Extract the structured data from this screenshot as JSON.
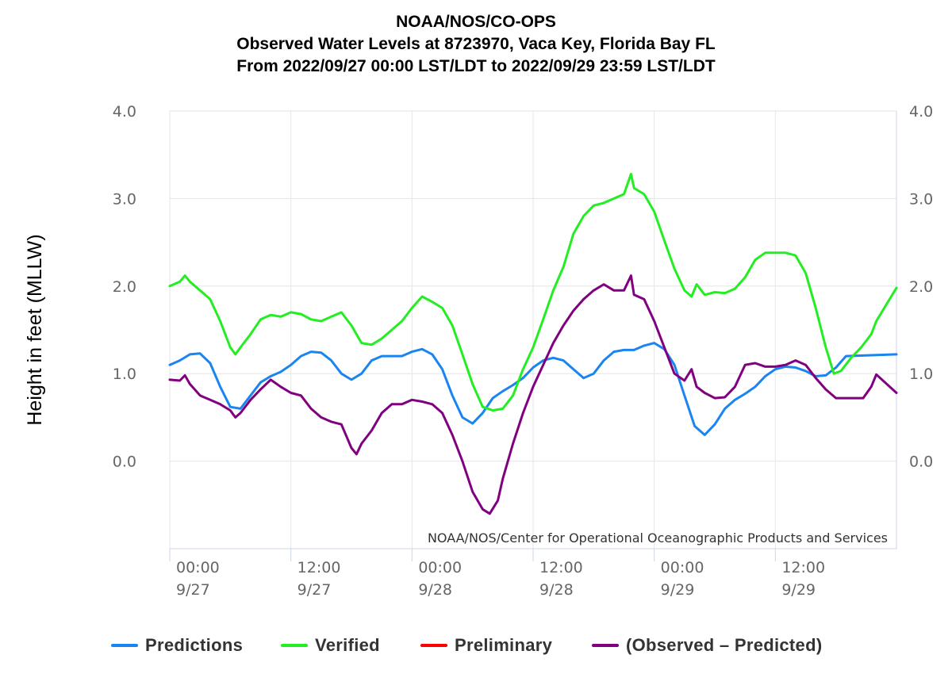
{
  "header": {
    "line1": "NOAA/NOS/CO-OPS",
    "line2": "Observed Water Levels at 8723970, Vaca Key, Florida Bay FL",
    "line3": "From 2022/09/27 00:00 LST/LDT to 2022/09/29 23:59 LST/LDT"
  },
  "colors": {
    "predictions": "#1a85f0",
    "verified": "#22ee22",
    "preliminary": "#ff0000",
    "observed_minus_predicted": "#800080"
  },
  "chart_data": {
    "type": "line",
    "title": "NOAA/NOS/CO-OPS",
    "ylabel": "Height in feet (MLLW)",
    "ylim": [
      -1.0,
      4.0
    ],
    "yticks": [
      0.0,
      1.0,
      2.0,
      3.0,
      4.0
    ],
    "ytick_labels": [
      "0.0",
      "1.0",
      "2.0",
      "3.0",
      "4.0"
    ],
    "xlim": [
      0,
      72
    ],
    "xticks": [
      0,
      12,
      24,
      36,
      48,
      60
    ],
    "xtick_labels": [
      [
        "00:00",
        "9/27"
      ],
      [
        "12:00",
        "9/27"
      ],
      [
        "00:00",
        "9/28"
      ],
      [
        "12:00",
        "9/28"
      ],
      [
        "00:00",
        "9/29"
      ],
      [
        "12:00",
        "9/29"
      ]
    ],
    "grid": true,
    "credit": "NOAA/NOS/Center for Operational Oceanographic Products and Services",
    "legend_position": "bottom",
    "series": [
      {
        "name": "Predictions",
        "color_key": "predictions",
        "points": [
          [
            0,
            1.1
          ],
          [
            1,
            1.15
          ],
          [
            2,
            1.22
          ],
          [
            3,
            1.23
          ],
          [
            4,
            1.12
          ],
          [
            5,
            0.85
          ],
          [
            6,
            0.62
          ],
          [
            7,
            0.6
          ],
          [
            8,
            0.75
          ],
          [
            9,
            0.9
          ],
          [
            10,
            0.97
          ],
          [
            11,
            1.02
          ],
          [
            12,
            1.1
          ],
          [
            13,
            1.2
          ],
          [
            14,
            1.25
          ],
          [
            15,
            1.24
          ],
          [
            16,
            1.15
          ],
          [
            17,
            1.0
          ],
          [
            18,
            0.93
          ],
          [
            19,
            1.0
          ],
          [
            20,
            1.15
          ],
          [
            21,
            1.2
          ],
          [
            22,
            1.2
          ],
          [
            23,
            1.2
          ],
          [
            24,
            1.25
          ],
          [
            25,
            1.28
          ],
          [
            26,
            1.22
          ],
          [
            27,
            1.05
          ],
          [
            28,
            0.75
          ],
          [
            29,
            0.5
          ],
          [
            30,
            0.43
          ],
          [
            31,
            0.55
          ],
          [
            32,
            0.72
          ],
          [
            33,
            0.8
          ],
          [
            34,
            0.87
          ],
          [
            35,
            0.95
          ],
          [
            36,
            1.07
          ],
          [
            37,
            1.15
          ],
          [
            38,
            1.18
          ],
          [
            39,
            1.15
          ],
          [
            40,
            1.05
          ],
          [
            41,
            0.95
          ],
          [
            42,
            1.0
          ],
          [
            43,
            1.15
          ],
          [
            44,
            1.25
          ],
          [
            45,
            1.27
          ],
          [
            46,
            1.27
          ],
          [
            47,
            1.32
          ],
          [
            48,
            1.35
          ],
          [
            49,
            1.28
          ],
          [
            50,
            1.1
          ],
          [
            51,
            0.75
          ],
          [
            52,
            0.4
          ],
          [
            53,
            0.3
          ],
          [
            54,
            0.42
          ],
          [
            55,
            0.6
          ],
          [
            56,
            0.7
          ],
          [
            57,
            0.77
          ],
          [
            58,
            0.85
          ],
          [
            59,
            0.97
          ],
          [
            60,
            1.05
          ],
          [
            61,
            1.08
          ],
          [
            62,
            1.07
          ],
          [
            63,
            1.03
          ],
          [
            64,
            0.97
          ],
          [
            65,
            0.98
          ],
          [
            66,
            1.07
          ],
          [
            67,
            1.2
          ],
          [
            72,
            1.22
          ]
        ]
      },
      {
        "name": "Verified",
        "color_key": "verified",
        "points": [
          [
            0,
            2.0
          ],
          [
            1,
            2.05
          ],
          [
            1.5,
            2.12
          ],
          [
            2,
            2.05
          ],
          [
            3,
            1.95
          ],
          [
            4,
            1.85
          ],
          [
            5,
            1.6
          ],
          [
            6,
            1.3
          ],
          [
            6.5,
            1.22
          ],
          [
            7,
            1.3
          ],
          [
            8,
            1.45
          ],
          [
            9,
            1.62
          ],
          [
            10,
            1.67
          ],
          [
            11,
            1.65
          ],
          [
            12,
            1.7
          ],
          [
            13,
            1.68
          ],
          [
            14,
            1.62
          ],
          [
            15,
            1.6
          ],
          [
            16,
            1.65
          ],
          [
            17,
            1.7
          ],
          [
            18,
            1.55
          ],
          [
            19,
            1.35
          ],
          [
            20,
            1.33
          ],
          [
            21,
            1.4
          ],
          [
            22,
            1.5
          ],
          [
            23,
            1.6
          ],
          [
            24,
            1.75
          ],
          [
            25,
            1.88
          ],
          [
            26,
            1.82
          ],
          [
            27,
            1.75
          ],
          [
            28,
            1.55
          ],
          [
            29,
            1.22
          ],
          [
            30,
            0.88
          ],
          [
            31,
            0.62
          ],
          [
            32,
            0.58
          ],
          [
            33,
            0.6
          ],
          [
            34,
            0.75
          ],
          [
            35,
            1.05
          ],
          [
            36,
            1.3
          ],
          [
            37,
            1.62
          ],
          [
            38,
            1.95
          ],
          [
            39,
            2.22
          ],
          [
            40,
            2.6
          ],
          [
            41,
            2.8
          ],
          [
            42,
            2.92
          ],
          [
            43,
            2.95
          ],
          [
            44,
            3.0
          ],
          [
            45,
            3.05
          ],
          [
            45.7,
            3.28
          ],
          [
            46,
            3.12
          ],
          [
            47,
            3.05
          ],
          [
            48,
            2.85
          ],
          [
            49,
            2.52
          ],
          [
            50,
            2.2
          ],
          [
            51,
            1.95
          ],
          [
            51.7,
            1.88
          ],
          [
            52.2,
            2.02
          ],
          [
            53,
            1.9
          ],
          [
            54,
            1.93
          ],
          [
            55,
            1.92
          ],
          [
            56,
            1.97
          ],
          [
            57,
            2.1
          ],
          [
            58,
            2.3
          ],
          [
            59,
            2.38
          ],
          [
            60,
            2.38
          ],
          [
            61,
            2.38
          ],
          [
            62,
            2.35
          ],
          [
            63,
            2.15
          ],
          [
            64,
            1.75
          ],
          [
            65,
            1.3
          ],
          [
            65.8,
            1.0
          ],
          [
            66.5,
            1.03
          ],
          [
            67.5,
            1.18
          ],
          [
            68.5,
            1.3
          ],
          [
            69.5,
            1.45
          ],
          [
            70,
            1.6
          ],
          [
            72,
            1.98
          ]
        ]
      },
      {
        "name": "Preliminary",
        "color_key": "preliminary",
        "points": []
      },
      {
        "name": "(Observed – Predicted)",
        "color_key": "observed_minus_predicted",
        "points": [
          [
            0,
            0.93
          ],
          [
            1,
            0.92
          ],
          [
            1.5,
            0.98
          ],
          [
            2,
            0.88
          ],
          [
            3,
            0.75
          ],
          [
            4,
            0.7
          ],
          [
            5,
            0.65
          ],
          [
            6,
            0.58
          ],
          [
            6.5,
            0.5
          ],
          [
            7,
            0.55
          ],
          [
            8,
            0.7
          ],
          [
            9,
            0.82
          ],
          [
            10,
            0.93
          ],
          [
            11,
            0.85
          ],
          [
            12,
            0.78
          ],
          [
            13,
            0.75
          ],
          [
            14,
            0.6
          ],
          [
            15,
            0.5
          ],
          [
            16,
            0.45
          ],
          [
            17,
            0.42
          ],
          [
            18,
            0.15
          ],
          [
            18.5,
            0.08
          ],
          [
            19,
            0.2
          ],
          [
            20,
            0.35
          ],
          [
            21,
            0.55
          ],
          [
            22,
            0.65
          ],
          [
            23,
            0.65
          ],
          [
            24,
            0.7
          ],
          [
            25,
            0.68
          ],
          [
            26,
            0.65
          ],
          [
            27,
            0.55
          ],
          [
            28,
            0.3
          ],
          [
            29,
            0.0
          ],
          [
            30,
            -0.35
          ],
          [
            31,
            -0.55
          ],
          [
            31.7,
            -0.6
          ],
          [
            32.5,
            -0.45
          ],
          [
            33,
            -0.2
          ],
          [
            34,
            0.2
          ],
          [
            35,
            0.55
          ],
          [
            36,
            0.85
          ],
          [
            37,
            1.1
          ],
          [
            38,
            1.35
          ],
          [
            39,
            1.55
          ],
          [
            40,
            1.72
          ],
          [
            41,
            1.85
          ],
          [
            42,
            1.95
          ],
          [
            43,
            2.02
          ],
          [
            44,
            1.95
          ],
          [
            45,
            1.95
          ],
          [
            45.7,
            2.12
          ],
          [
            46,
            1.9
          ],
          [
            47,
            1.85
          ],
          [
            48,
            1.6
          ],
          [
            49,
            1.3
          ],
          [
            50,
            1.0
          ],
          [
            51,
            0.92
          ],
          [
            51.7,
            1.05
          ],
          [
            52.2,
            0.85
          ],
          [
            53,
            0.78
          ],
          [
            54,
            0.72
          ],
          [
            55,
            0.73
          ],
          [
            56,
            0.85
          ],
          [
            57,
            1.1
          ],
          [
            58,
            1.12
          ],
          [
            59,
            1.08
          ],
          [
            60,
            1.08
          ],
          [
            61,
            1.1
          ],
          [
            62,
            1.15
          ],
          [
            63,
            1.1
          ],
          [
            64,
            0.95
          ],
          [
            65,
            0.82
          ],
          [
            66,
            0.72
          ],
          [
            67,
            0.72
          ],
          [
            68,
            0.72
          ],
          [
            68.7,
            0.72
          ],
          [
            69.5,
            0.85
          ],
          [
            70,
            0.99
          ],
          [
            72,
            0.78
          ]
        ]
      }
    ]
  }
}
